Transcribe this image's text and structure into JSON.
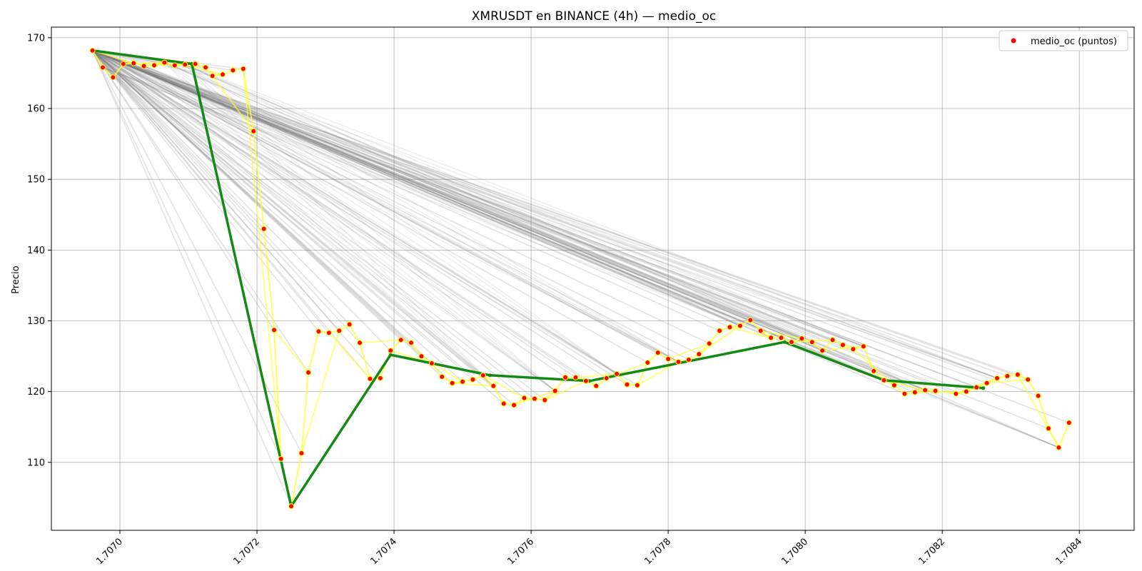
{
  "chart_data": {
    "type": "scatter",
    "title": "XMRUSDT en BINANCE (4h) — medio_oc",
    "xlabel": "",
    "ylabel": "Precio",
    "xlim": [
      1.7069,
      1.70848
    ],
    "ylim": [
      100.4,
      171.5
    ],
    "x_ticks": [
      "1.7070",
      "1.7072",
      "1.7074",
      "1.7076",
      "1.7078",
      "1.7080",
      "1.7082",
      "1.7084"
    ],
    "x_tick_values": [
      1.707,
      1.7072,
      1.7074,
      1.7076,
      1.7078,
      1.708,
      1.7082,
      1.7084
    ],
    "y_ticks": [
      "110",
      "120",
      "130",
      "140",
      "150",
      "160",
      "170"
    ],
    "y_tick_values": [
      110,
      120,
      130,
      140,
      150,
      160,
      170
    ],
    "grid": true,
    "legend": {
      "placement": "top-right",
      "entries": [
        "medio_oc (puntos)"
      ]
    },
    "colors": {
      "points": "#ff0000",
      "point_edge": "#ffff00",
      "yellow_lines": "#ffff33",
      "gray_lines": "#808080",
      "green_line": "#138a13",
      "grid": "#b0b0b0"
    },
    "points": [
      [
        1.70696,
        168.2
      ],
      [
        1.706975,
        165.8
      ],
      [
        1.70699,
        164.4
      ],
      [
        1.707005,
        166.3
      ],
      [
        1.70702,
        166.4
      ],
      [
        1.707035,
        166.0
      ],
      [
        1.70705,
        166.1
      ],
      [
        1.707065,
        166.5
      ],
      [
        1.70708,
        166.1
      ],
      [
        1.707095,
        166.2
      ],
      [
        1.70711,
        166.3
      ],
      [
        1.707125,
        165.8
      ],
      [
        1.707135,
        164.6
      ],
      [
        1.70715,
        164.8
      ],
      [
        1.707165,
        165.4
      ],
      [
        1.70718,
        165.6
      ],
      [
        1.707195,
        156.8
      ],
      [
        1.70721,
        143.0
      ],
      [
        1.707225,
        128.7
      ],
      [
        1.707235,
        110.5
      ],
      [
        1.70725,
        103.8
      ],
      [
        1.707265,
        111.3
      ],
      [
        1.707275,
        122.7
      ],
      [
        1.70729,
        128.5
      ],
      [
        1.707305,
        128.3
      ],
      [
        1.70732,
        128.6
      ],
      [
        1.707335,
        129.5
      ],
      [
        1.70735,
        126.9
      ],
      [
        1.707365,
        121.8
      ],
      [
        1.70738,
        121.9
      ],
      [
        1.707395,
        125.8
      ],
      [
        1.70741,
        127.3
      ],
      [
        1.707425,
        126.9
      ],
      [
        1.70744,
        125.0
      ],
      [
        1.707455,
        124.0
      ],
      [
        1.70747,
        122.1
      ],
      [
        1.707485,
        121.2
      ],
      [
        1.7075,
        121.4
      ],
      [
        1.707515,
        121.7
      ],
      [
        1.70753,
        122.3
      ],
      [
        1.707545,
        120.8
      ],
      [
        1.70756,
        118.3
      ],
      [
        1.707575,
        118.1
      ],
      [
        1.70759,
        119.1
      ],
      [
        1.707605,
        119.0
      ],
      [
        1.70762,
        118.8
      ],
      [
        1.707635,
        120.1
      ],
      [
        1.70765,
        122.0
      ],
      [
        1.707665,
        122.0
      ],
      [
        1.70768,
        121.5
      ],
      [
        1.707695,
        120.8
      ],
      [
        1.70771,
        121.9
      ],
      [
        1.707725,
        122.5
      ],
      [
        1.70774,
        121.0
      ],
      [
        1.707755,
        120.9
      ],
      [
        1.70777,
        124.1
      ],
      [
        1.707785,
        125.5
      ],
      [
        1.7078,
        124.6
      ],
      [
        1.707815,
        124.2
      ],
      [
        1.70783,
        124.5
      ],
      [
        1.707845,
        125.3
      ],
      [
        1.70786,
        126.8
      ],
      [
        1.707875,
        128.6
      ],
      [
        1.70789,
        129.1
      ],
      [
        1.707905,
        129.3
      ],
      [
        1.70792,
        130.1
      ],
      [
        1.707935,
        128.6
      ],
      [
        1.70795,
        127.6
      ],
      [
        1.707965,
        127.6
      ],
      [
        1.70798,
        127.0
      ],
      [
        1.707995,
        127.5
      ],
      [
        1.70801,
        127.0
      ],
      [
        1.708025,
        125.8
      ],
      [
        1.70804,
        127.3
      ],
      [
        1.708055,
        126.6
      ],
      [
        1.70807,
        126.0
      ],
      [
        1.708085,
        126.4
      ],
      [
        1.7081,
        122.9
      ],
      [
        1.708115,
        121.6
      ],
      [
        1.70813,
        120.9
      ],
      [
        1.708145,
        119.7
      ],
      [
        1.70816,
        119.9
      ],
      [
        1.708175,
        120.2
      ],
      [
        1.70819,
        120.1
      ],
      [
        1.70822,
        119.7
      ],
      [
        1.708235,
        120.0
      ],
      [
        1.70825,
        120.6
      ],
      [
        1.708265,
        121.2
      ],
      [
        1.70828,
        121.9
      ],
      [
        1.708295,
        122.2
      ],
      [
        1.70831,
        122.4
      ],
      [
        1.708325,
        121.7
      ],
      [
        1.70834,
        119.4
      ],
      [
        1.708355,
        114.8
      ],
      [
        1.70837,
        112.1
      ],
      [
        1.708385,
        115.6
      ]
    ],
    "green_path": [
      [
        1.70696,
        168.2
      ],
      [
        1.707105,
        166.3
      ],
      [
        1.70725,
        103.8
      ],
      [
        1.707395,
        125.2
      ],
      [
        1.70754,
        122.3
      ],
      [
        1.707685,
        121.5
      ],
      [
        1.70797,
        127.0
      ],
      [
        1.708115,
        121.6
      ],
      [
        1.70826,
        120.5
      ]
    ]
  }
}
